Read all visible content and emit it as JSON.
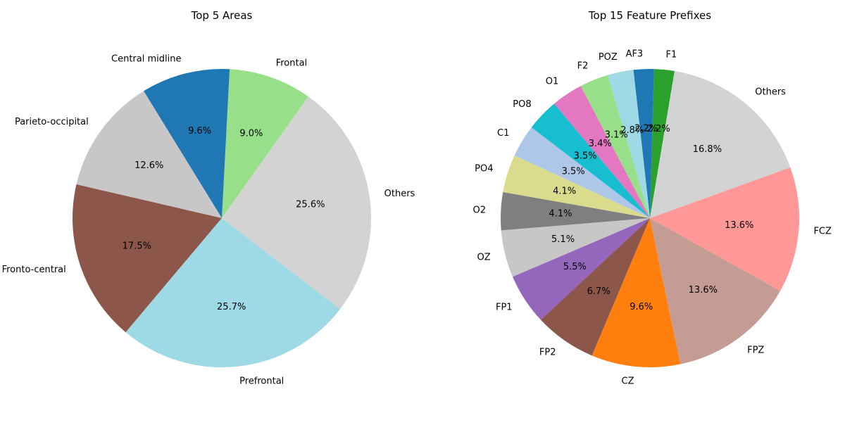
{
  "chart_data": [
    {
      "type": "pie",
      "title": "Top 5 Areas",
      "slices": [
        {
          "label": "Frontal",
          "value": 9.0,
          "pct_label": "9.0%",
          "color": "#98df8a"
        },
        {
          "label": "Central midline",
          "value": 9.6,
          "pct_label": "9.6%",
          "color": "#1f77b4"
        },
        {
          "label": "Parieto-occipital",
          "value": 12.6,
          "pct_label": "12.6%",
          "color": "#c7c7c7"
        },
        {
          "label": "Fronto-central",
          "value": 17.5,
          "pct_label": "17.5%",
          "color": "#8c564b"
        },
        {
          "label": "Prefrontal",
          "value": 25.7,
          "pct_label": "25.7%",
          "color": "#9edae5"
        },
        {
          "label": "Others",
          "value": 25.6,
          "pct_label": "25.6%",
          "color": "#d3d3d3"
        }
      ]
    },
    {
      "type": "pie",
      "title": "Top 15 Feature Prefixes",
      "slices": [
        {
          "label": "F1",
          "value": 2.2,
          "pct_label": "2.2%",
          "color": "#2ca02c"
        },
        {
          "label": "AF3",
          "value": 2.2,
          "pct_label": "2.2%",
          "color": "#1f77b4"
        },
        {
          "label": "POZ",
          "value": 2.8,
          "pct_label": "2.8%",
          "color": "#9edae5"
        },
        {
          "label": "F2",
          "value": 3.1,
          "pct_label": "3.1%",
          "color": "#98df8a"
        },
        {
          "label": "O1",
          "value": 3.4,
          "pct_label": "3.4%",
          "color": "#e377c2"
        },
        {
          "label": "PO8",
          "value": 3.5,
          "pct_label": "3.5%",
          "color": "#17becf"
        },
        {
          "label": "C1",
          "value": 3.5,
          "pct_label": "3.5%",
          "color": "#aec7e8"
        },
        {
          "label": "PO4",
          "value": 4.1,
          "pct_label": "4.1%",
          "color": "#dbdb8d"
        },
        {
          "label": "O2",
          "value": 4.1,
          "pct_label": "4.1%",
          "color": "#7f7f7f"
        },
        {
          "label": "OZ",
          "value": 5.1,
          "pct_label": "5.1%",
          "color": "#c7c7c7"
        },
        {
          "label": "FP1",
          "value": 5.5,
          "pct_label": "5.5%",
          "color": "#9467bd"
        },
        {
          "label": "FP2",
          "value": 6.7,
          "pct_label": "6.7%",
          "color": "#8c564b"
        },
        {
          "label": "CZ",
          "value": 9.6,
          "pct_label": "9.6%",
          "color": "#ff7f0e"
        },
        {
          "label": "FPZ",
          "value": 13.6,
          "pct_label": "13.6%",
          "color": "#c49c94"
        },
        {
          "label": "FCZ",
          "value": 13.6,
          "pct_label": "13.6%",
          "color": "#ff9896"
        },
        {
          "label": "Others",
          "value": 16.8,
          "pct_label": "16.8%",
          "color": "#d3d3d3"
        }
      ]
    }
  ]
}
